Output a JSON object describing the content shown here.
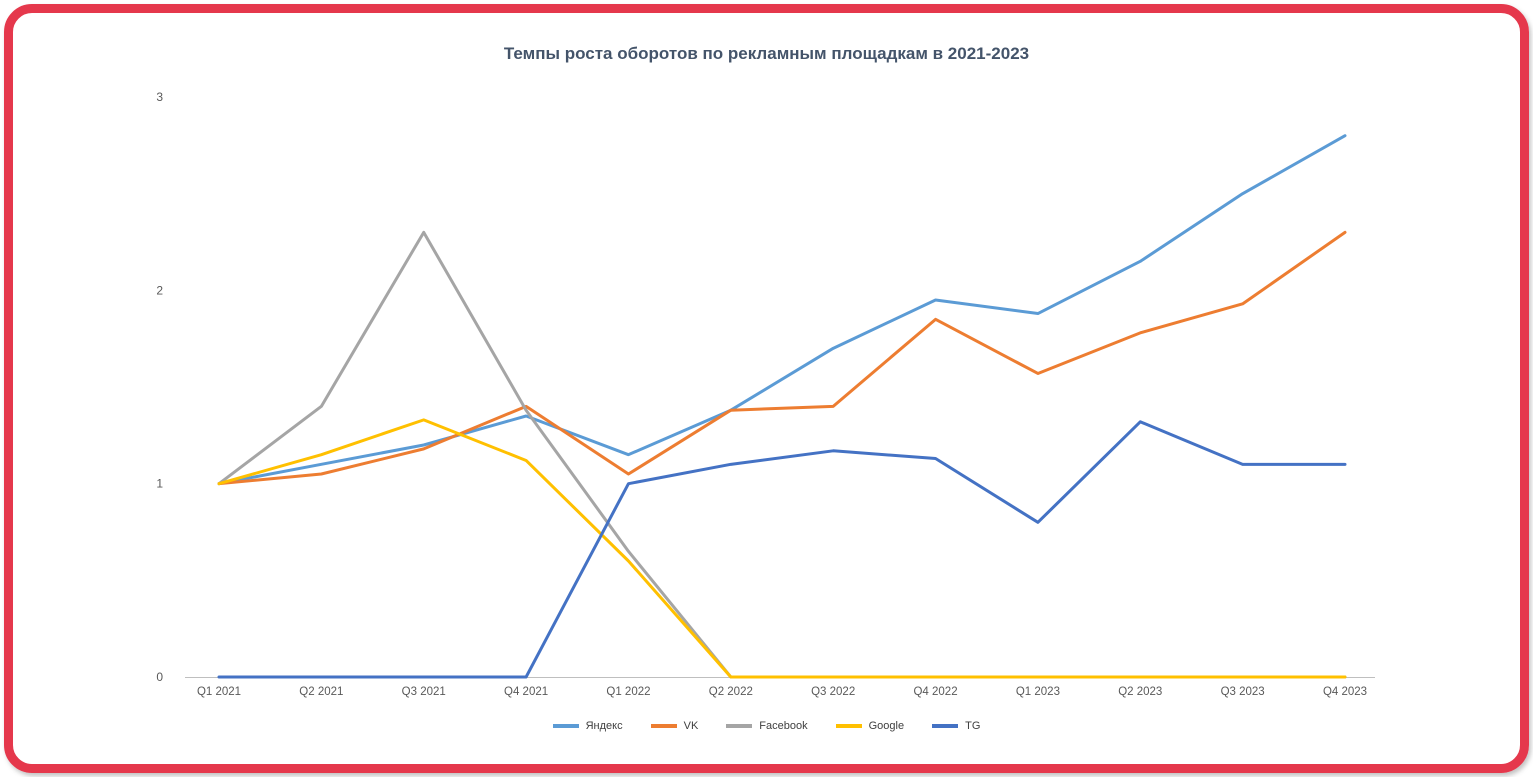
{
  "frame": {
    "border_color": "#e5384c"
  },
  "chart_data": {
    "type": "line",
    "title": "Темпы роста оборотов по рекламным площадкам в 2021-2023",
    "title_color": "#44546a",
    "categories": [
      "Q1 2021",
      "Q2 2021",
      "Q3 2021",
      "Q4 2021",
      "Q1 2022",
      "Q2 2022",
      "Q3 2022",
      "Q4 2022",
      "Q1 2023",
      "Q2 2023",
      "Q3 2023",
      "Q4 2023"
    ],
    "series": [
      {
        "name": "Яндекс",
        "color": "#5B9BD5",
        "values": [
          1,
          1.1,
          1.2,
          1.35,
          1.15,
          1.38,
          1.7,
          1.95,
          1.88,
          2.15,
          2.5,
          2.8
        ]
      },
      {
        "name": "VK",
        "color": "#ED7D31",
        "values": [
          1,
          1.05,
          1.18,
          1.4,
          1.05,
          1.38,
          1.4,
          1.85,
          1.57,
          1.78,
          1.93,
          2.3
        ]
      },
      {
        "name": "Facebook",
        "color": "#A5A5A5",
        "values": [
          1,
          1.4,
          2.3,
          1.38,
          0.65,
          0,
          0,
          0,
          0,
          0,
          0,
          0
        ]
      },
      {
        "name": "Google",
        "color": "#FFC000",
        "values": [
          1,
          1.15,
          1.33,
          1.12,
          0.6,
          0,
          0,
          0,
          0,
          0,
          0,
          0
        ]
      },
      {
        "name": "TG",
        "color": "#4472C4",
        "values": [
          0,
          0,
          0,
          0,
          1,
          1.1,
          1.17,
          1.13,
          0.8,
          1.32,
          1.1,
          1.1
        ]
      }
    ],
    "xlabel": "",
    "ylabel": "",
    "ylim": [
      0,
      3
    ],
    "yticks": [
      0,
      1,
      2,
      3
    ],
    "grid": false,
    "legend_position": "bottom",
    "axis_color": "#bfbfbf",
    "tick_color": "#595959"
  }
}
